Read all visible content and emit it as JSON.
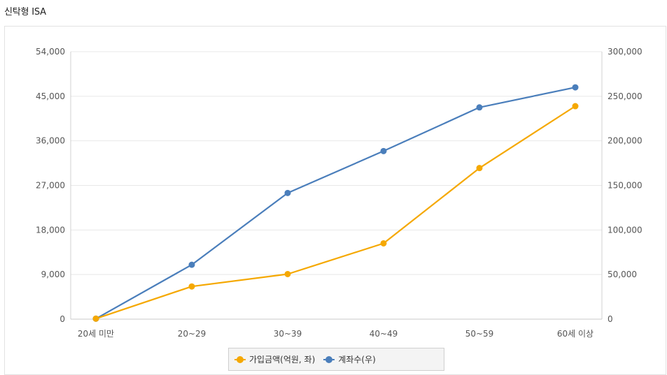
{
  "page": {
    "title": "신탁형 ISA"
  },
  "chart_data": {
    "type": "line",
    "title": "",
    "categories": [
      "20세 미만",
      "20~29",
      "30~39",
      "40~49",
      "50~59",
      "60세 이상"
    ],
    "y_left": {
      "min": 0,
      "max": 54000,
      "ticks": [
        0,
        9000,
        18000,
        27000,
        36000,
        45000,
        54000
      ],
      "tick_labels": [
        "0",
        "9,000",
        "18,000",
        "27,000",
        "36,000",
        "45,000",
        "54,000"
      ]
    },
    "y_right": {
      "min": 0,
      "max": 300000,
      "ticks": [
        0,
        50000,
        100000,
        150000,
        200000,
        250000,
        300000
      ],
      "tick_labels": [
        "0",
        "50,000",
        "100,000",
        "150,000",
        "200,000",
        "250,000",
        "300,000"
      ]
    },
    "grid": true,
    "legend_position": "bottom",
    "series": [
      {
        "name": "가입금액(억원, 좌)",
        "axis": "left",
        "color": "#f5a800",
        "values": [
          100,
          6600,
          9100,
          15300,
          30500,
          43000
        ]
      },
      {
        "name": "계좌수(우)",
        "axis": "right",
        "color": "#4a7ebb",
        "values": [
          500,
          61000,
          141500,
          188500,
          237500,
          260000
        ]
      }
    ]
  }
}
